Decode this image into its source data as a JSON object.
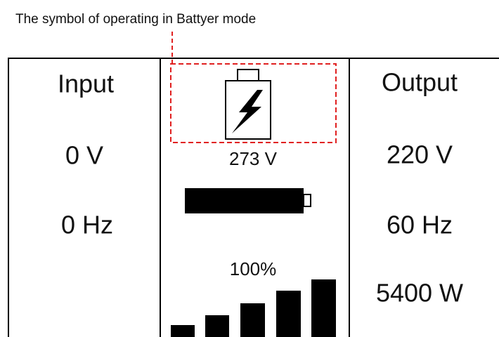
{
  "caption": "The symbol of operating in Battyer mode",
  "input": {
    "label": "Input",
    "voltage": "0 V",
    "frequency": "0 Hz"
  },
  "center": {
    "battery_voltage": "273 V",
    "load_percent": "100%"
  },
  "output": {
    "label": "Output",
    "voltage": "220 V",
    "frequency": "60 Hz",
    "power": "5400 W"
  }
}
